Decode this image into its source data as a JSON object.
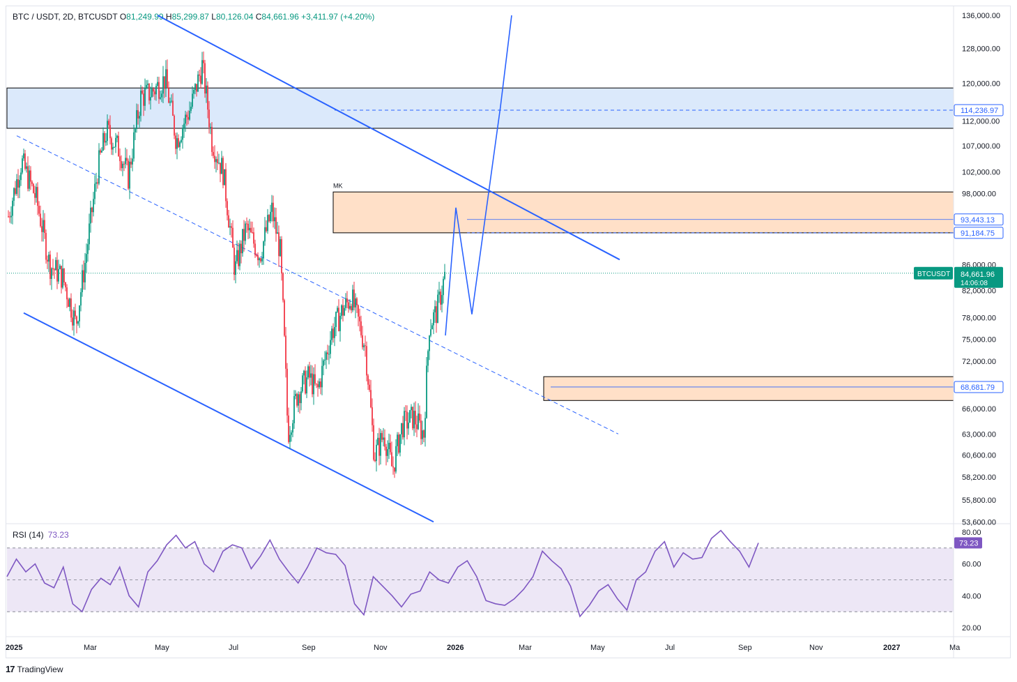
{
  "legend": {
    "symbol": "BTC / USDT, 2D, BTCUSDT",
    "o_label": "O",
    "o_value": "81,249.99",
    "h_label": "H",
    "h_value": "85,299.87",
    "l_label": "L",
    "l_value": "80,126.04",
    "c_label": "C",
    "c_value": "84,661.96",
    "change": "+3,411.97 (+4.20%)"
  },
  "rsi_legend": {
    "label": "RSI (14)",
    "value": "73.23"
  },
  "footer": {
    "brand": "TradingView",
    "logo": "17"
  },
  "colors": {
    "up": "#089981",
    "down": "#f23645",
    "trendline": "#2962ff",
    "supply_zone": "#ffe0c8",
    "demand_box": "#dbe9fb",
    "rsi": "#7e57c2",
    "rsi_band": "#ede7f6"
  },
  "chart_data": [
    {
      "type": "candlestick",
      "title": "BTC / USDT, 2D, BTCUSDT",
      "y_axis": {
        "scale": "log",
        "ticks": [
          "136,000.00",
          "128,000.00",
          "120,000.00",
          "112,000.00",
          "107,000.00",
          "102,000.00",
          "98,000.00",
          "86,000.00",
          "82,000.00",
          "78,000.00",
          "75,000.00",
          "72,000.00",
          "66,000.00",
          "63,000.00",
          "60,600.00",
          "58,200.00",
          "55,800.00",
          "53,600.00"
        ],
        "ylim": [
          53600,
          136000
        ]
      },
      "x_axis": {
        "ticks": [
          "2025",
          "Mar",
          "May",
          "Jul",
          "Sep",
          "Nov",
          "2026",
          "Mar",
          "May",
          "Jul",
          "Sep",
          "Nov",
          "2027",
          "Ma"
        ]
      },
      "price_labels": [
        {
          "label": "114,236.97",
          "value": 114236.97,
          "style": "outline"
        },
        {
          "label": "93,443.13",
          "value": 93443.13,
          "style": "outline"
        },
        {
          "label": "91,184.75",
          "value": 91184.75,
          "style": "outline"
        },
        {
          "label": "68,681.79",
          "value": 68681.79,
          "style": "outline"
        },
        {
          "label": "84,661.96",
          "value": 84661.96,
          "style": "current",
          "countdown": "14:06:08",
          "tag": "BTCUSDT"
        }
      ],
      "zones": [
        {
          "type": "demand_box",
          "y_range": [
            110500,
            119000
          ]
        },
        {
          "type": "supply_zone",
          "label": "MK",
          "y_range": [
            91184.75,
            98300
          ]
        },
        {
          "type": "supply_zone",
          "y_range": [
            67000,
            70000
          ]
        }
      ],
      "close_series": [
        {
          "date": "2025-01-01",
          "close": 94000
        },
        {
          "date": "2025-01-20",
          "close": 104000
        },
        {
          "date": "2025-02-10",
          "close": 97000
        },
        {
          "date": "2025-03-01",
          "close": 86000
        },
        {
          "date": "2025-03-20",
          "close": 84000
        },
        {
          "date": "2025-04-08",
          "close": 77000
        },
        {
          "date": "2025-04-22",
          "close": 87000
        },
        {
          "date": "2025-05-10",
          "close": 103000
        },
        {
          "date": "2025-05-22",
          "close": 110000
        },
        {
          "date": "2025-06-10",
          "close": 106000
        },
        {
          "date": "2025-06-22",
          "close": 101000
        },
        {
          "date": "2025-07-10",
          "close": 117000
        },
        {
          "date": "2025-07-25",
          "close": 118000
        },
        {
          "date": "2025-08-14",
          "close": 121000
        },
        {
          "date": "2025-08-30",
          "close": 108000
        },
        {
          "date": "2025-09-20",
          "close": 115000
        },
        {
          "date": "2025-10-06",
          "close": 124000
        },
        {
          "date": "2025-10-20",
          "close": 108000
        },
        {
          "date": "2025-11-05",
          "close": 102000
        },
        {
          "date": "2025-11-22",
          "close": 85000
        },
        {
          "date": "2025-12-08",
          "close": 92000
        },
        {
          "date": "2025-12-28",
          "close": 87500
        },
        {
          "date": "2026-01-14",
          "close": 95000
        },
        {
          "date": "2026-01-26",
          "close": 88000
        },
        {
          "date": "2026-02-06",
          "close": 63000
        },
        {
          "date": "2026-02-20",
          "close": 68000
        },
        {
          "date": "2026-03-08",
          "close": 70000
        },
        {
          "date": "2026-03-20",
          "close": 68000
        },
        {
          "date": "2026-04-10",
          "close": 76000
        },
        {
          "date": "2026-04-25",
          "close": 79000
        },
        {
          "date": "2026-05-08",
          "close": 81000
        },
        {
          "date": "2026-05-28",
          "close": 74000
        },
        {
          "date": "2026-06-10",
          "close": 60500
        },
        {
          "date": "2026-06-24",
          "close": 63000
        },
        {
          "date": "2026-07-06",
          "close": 59000
        },
        {
          "date": "2026-07-20",
          "close": 64000
        },
        {
          "date": "2026-08-05",
          "close": 65000
        },
        {
          "date": "2026-08-20",
          "close": 63000
        },
        {
          "date": "2026-08-28",
          "close": 77000
        },
        {
          "date": "2026-09-08",
          "close": 79000
        },
        {
          "date": "2026-09-20",
          "close": 84661.96
        }
      ],
      "projection": [
        {
          "date": "2026-09-20",
          "price": 75500
        },
        {
          "date": "2026-10-05",
          "price": 95500
        },
        {
          "date": "2026-10-28",
          "price": 78500
        },
        {
          "date": "2026-12-08",
          "price": 115000
        },
        {
          "date": "2026-12-24",
          "price": 136000
        }
      ]
    },
    {
      "type": "line",
      "title": "RSI (14)",
      "value": 73.23,
      "ylim": [
        20,
        80
      ],
      "levels": [
        70,
        50,
        30
      ],
      "y_ticks": [
        "80.00",
        "60.00",
        "40.00",
        "20.00"
      ],
      "values": [
        52,
        63,
        55,
        60,
        48,
        45,
        58,
        35,
        30,
        44,
        51,
        47,
        58,
        40,
        33,
        55,
        62,
        72,
        78,
        70,
        74,
        60,
        55,
        68,
        72,
        70,
        57,
        65,
        75,
        63,
        55,
        48,
        58,
        70,
        67,
        66,
        59,
        35,
        28,
        52,
        46,
        40,
        33,
        41,
        43,
        55,
        50,
        48,
        58,
        62,
        52,
        37,
        35,
        34,
        38,
        44,
        52,
        68,
        62,
        57,
        46,
        27,
        34,
        43,
        47,
        38,
        31,
        50,
        55,
        68,
        74,
        58,
        67,
        63,
        64,
        76,
        81,
        74,
        68,
        58,
        73.23
      ]
    }
  ]
}
